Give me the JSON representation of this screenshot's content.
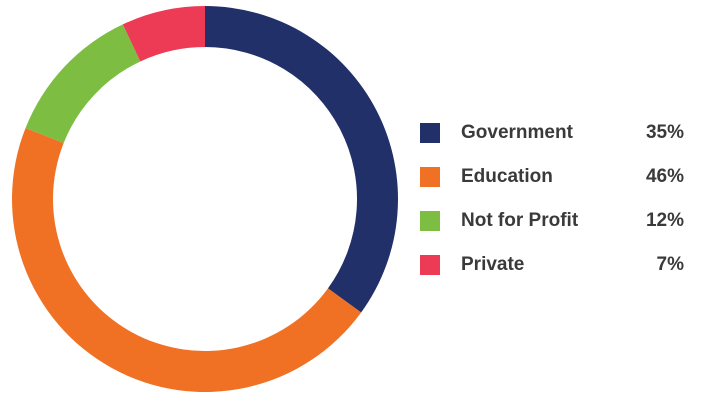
{
  "chart_data": {
    "type": "pie",
    "donut": true,
    "categories": [
      "Government",
      "Education",
      "Not for Profit",
      "Private"
    ],
    "values": [
      35,
      46,
      12,
      7
    ],
    "value_labels": [
      "35%",
      "46%",
      "12%",
      "7%"
    ],
    "colors": [
      "#22306a",
      "#f07124",
      "#7cbd42",
      "#ee3b55"
    ],
    "title": "",
    "legend_position": "right",
    "start_angle": "top",
    "direction": "clockwise"
  }
}
